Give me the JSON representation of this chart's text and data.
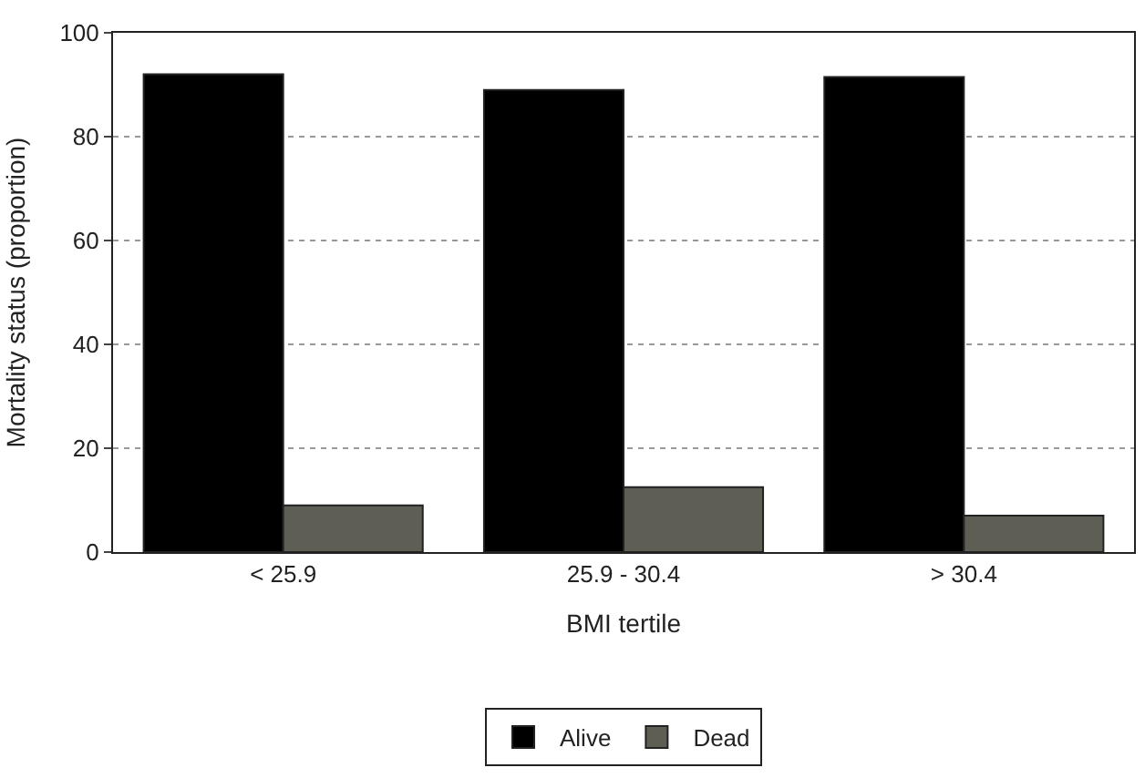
{
  "chart_data": {
    "type": "bar",
    "xlabel": "BMI tertile",
    "ylabel": "Mortality status (proportion)",
    "categories": [
      "< 25.9",
      "25.9 - 30.4",
      "> 30.4"
    ],
    "series": [
      {
        "name": "Alive",
        "color": "#000000",
        "values": [
          92,
          89,
          91.5
        ]
      },
      {
        "name": "Dead",
        "color": "#5e5e55",
        "values": [
          9,
          12.5,
          7
        ]
      }
    ],
    "ylim": [
      0,
      100
    ],
    "yticks": [
      0,
      20,
      40,
      60,
      80,
      100
    ],
    "grid": "y",
    "legend": "bottom"
  }
}
